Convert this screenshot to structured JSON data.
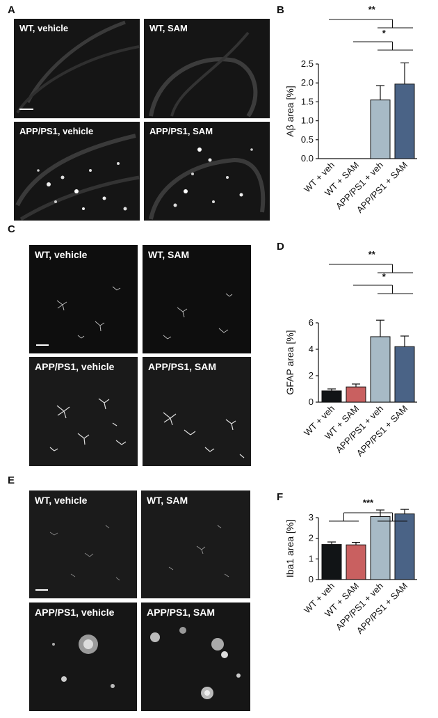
{
  "panel_letters": [
    "A",
    "B",
    "C",
    "D",
    "E",
    "F"
  ],
  "micrograph_labels": {
    "wt_vehicle": "WT, vehicle",
    "wt_sam": "WT, SAM",
    "app_vehicle": "APP/PS1, vehicle",
    "app_sam": "APP/PS1, SAM"
  },
  "colors": {
    "wt_veh": "#111416",
    "wt_sam": "#c96060",
    "app_veh": "#a7bac6",
    "app_sam": "#4a6386"
  },
  "chart_data": [
    {
      "type": "bar",
      "panel": "B",
      "categories": [
        "WT + veh",
        "WT + SAM",
        "APP/PS1 + veh",
        "APP/PS1 + SAM"
      ],
      "values": [
        0.0,
        0.0,
        1.55,
        1.97
      ],
      "errors": [
        0.0,
        0.0,
        0.38,
        0.56
      ],
      "ylabel": "Aβ area [%]",
      "ylim": [
        0,
        2.5
      ],
      "yticks": [
        0.0,
        0.5,
        1.0,
        1.5,
        2.0,
        2.5
      ],
      "ytick_labels": [
        "0.0",
        "0.5",
        "1.0",
        "1.5",
        "2.0",
        "2.5"
      ],
      "significance": [
        {
          "label": "**",
          "left": "WT + veh",
          "right": "APP/PS1 + veh – APP/PS1 + SAM"
        },
        {
          "label": "*",
          "left": "WT + SAM",
          "right": "APP/PS1 + veh – APP/PS1 + SAM"
        }
      ]
    },
    {
      "type": "bar",
      "panel": "D",
      "categories": [
        "WT + veh",
        "WT + SAM",
        "APP/PS1 + veh",
        "APP/PS1 + SAM"
      ],
      "values": [
        0.85,
        1.15,
        4.95,
        4.2
      ],
      "errors": [
        0.15,
        0.22,
        1.25,
        0.8
      ],
      "ylabel": "GFAP area [%]",
      "ylim": [
        0,
        6
      ],
      "yticks": [
        0,
        2,
        4,
        6
      ],
      "ytick_labels": [
        "0",
        "2",
        "4",
        "6"
      ],
      "significance": [
        {
          "label": "**",
          "left": "WT + veh",
          "right": "APP/PS1 + veh – APP/PS1 + SAM"
        },
        {
          "label": "*",
          "left": "WT + SAM",
          "right": "APP/PS1 + veh – APP/PS1 + SAM"
        }
      ]
    },
    {
      "type": "bar",
      "panel": "F",
      "categories": [
        "WT + veh",
        "WT + SAM",
        "APP/PS1 + veh",
        "APP/PS1 + SAM"
      ],
      "values": [
        1.7,
        1.68,
        3.05,
        3.18
      ],
      "errors": [
        0.12,
        0.12,
        0.32,
        0.22
      ],
      "ylabel": "Iba1 area [%]",
      "ylim": [
        0,
        3
      ],
      "yticks": [
        0,
        1,
        2,
        3
      ],
      "ytick_labels": [
        "0",
        "1",
        "2",
        "3"
      ],
      "significance": [
        {
          "label": "***",
          "left": "WT + veh – WT + SAM",
          "right": "APP/PS1 + veh – APP/PS1 + SAM"
        }
      ]
    }
  ]
}
